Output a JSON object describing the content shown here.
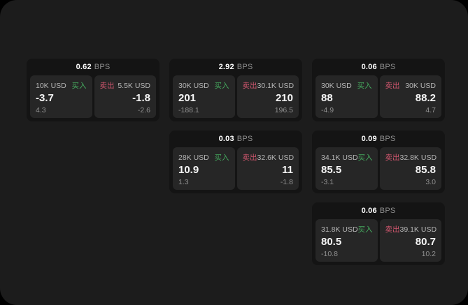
{
  "labels": {
    "bps_unit": "BPS",
    "buy": "买入",
    "sell": "卖出"
  },
  "colors": {
    "buy": "#45a95e",
    "sell": "#d0566e",
    "muted": "#8f8f8f",
    "muted2": "#919191",
    "page_bg": "#1c1c1c",
    "card_bg": "#141414",
    "panel_bg": "#262626"
  },
  "cards": [
    {
      "bps": "0.62",
      "buy": {
        "size": "10K USD",
        "price": "-3.7",
        "delta": "4.3"
      },
      "sell": {
        "size": "5.5K USD",
        "price": "-1.8",
        "delta": "-2.6"
      }
    },
    {
      "bps": "2.92",
      "buy": {
        "size": "30K USD",
        "price": "201",
        "delta": "-188.1"
      },
      "sell": {
        "size": "30.1K USD",
        "price": "210",
        "delta": "196.5"
      }
    },
    {
      "bps": "0.06",
      "buy": {
        "size": "30K USD",
        "price": "88",
        "delta": "-4.9"
      },
      "sell": {
        "size": "30K USD",
        "price": "88.2",
        "delta": "4.7"
      }
    },
    {
      "bps": "0.03",
      "buy": {
        "size": "28K USD",
        "price": "10.9",
        "delta": "1.3"
      },
      "sell": {
        "size": "32.6K USD",
        "price": "11",
        "delta": "-1.8"
      }
    },
    {
      "bps": "0.09",
      "buy": {
        "size": "34.1K USD",
        "price": "85.5",
        "delta": "-3.1"
      },
      "sell": {
        "size": "32.8K USD",
        "price": "85.8",
        "delta": "3.0"
      }
    },
    {
      "bps": "0.06",
      "buy": {
        "size": "31.8K USD",
        "price": "80.5",
        "delta": "-10.8"
      },
      "sell": {
        "size": "39.1K USD",
        "price": "80.7",
        "delta": "10.2"
      }
    }
  ]
}
